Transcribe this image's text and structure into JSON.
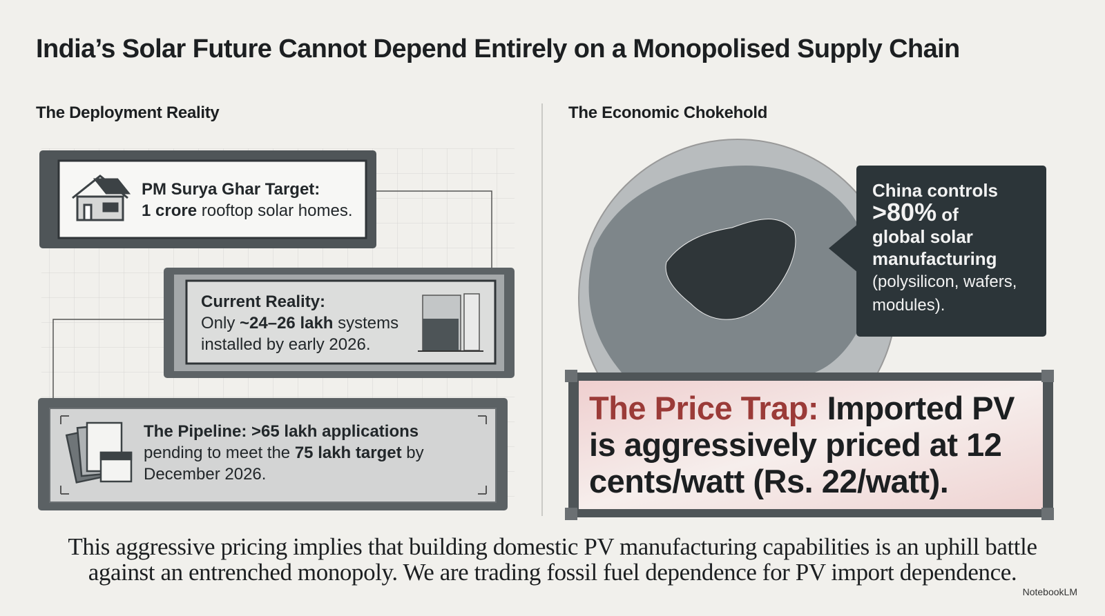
{
  "title": "India’s Solar Future Cannot Depend Entirely on a Monopolised Supply Chain",
  "left": {
    "heading": "The Deployment Reality",
    "cards": [
      {
        "lines": [
          [
            {
              "text": "PM Surya Ghar Target:",
              "style": "bold"
            }
          ],
          [
            {
              "text": "1 crore",
              "style": "bold"
            },
            {
              "text": " rooftop solar homes.",
              "style": "normal"
            }
          ]
        ]
      },
      {
        "lines": [
          [
            {
              "text": "Current Reality:",
              "style": "bold"
            }
          ],
          [
            {
              "text": "Only ",
              "style": "normal"
            },
            {
              "text": "~24–26 lakh",
              "style": "bold"
            },
            {
              "text": " systems",
              "style": "normal"
            }
          ],
          [
            {
              "text": "installed by early 2026.",
              "style": "normal"
            }
          ]
        ]
      },
      {
        "lines": [
          [
            {
              "text": "The Pipeline: >65 lakh applications",
              "style": "bold"
            }
          ],
          [
            {
              "text": "pending to meet the ",
              "style": "normal"
            },
            {
              "text": "75 lakh target",
              "style": "bold"
            },
            {
              "text": " by",
              "style": "normal"
            }
          ],
          [
            {
              "text": "December 2026.",
              "style": "normal"
            }
          ]
        ]
      }
    ]
  },
  "right": {
    "heading": "The Economic Chokehold",
    "callout": {
      "lines": [
        [
          {
            "text": "China controls",
            "style": "bold"
          }
        ],
        [
          {
            "text": ">80%",
            "style": "large"
          },
          {
            "text": " of",
            "style": "bold"
          }
        ],
        [
          {
            "text": "global solar",
            "style": "bold"
          }
        ],
        [
          {
            "text": "manufacturing",
            "style": "bold"
          }
        ],
        [
          {
            "text": "(polysilicon, wafers,",
            "style": "normal"
          }
        ],
        [
          {
            "text": "modules).",
            "style": "normal"
          }
        ]
      ]
    },
    "price_box": {
      "lines": [
        [
          {
            "text": "The Price Trap:",
            "style": "accent"
          },
          {
            "text": " Imported PV",
            "style": "bold"
          }
        ],
        [
          {
            "text": "is aggressively priced at 12",
            "style": "bold"
          }
        ],
        [
          {
            "text": "cents/watt (Rs. 22/watt).",
            "style": "bold"
          }
        ]
      ]
    }
  },
  "footer": {
    "lines": [
      [
        {
          "text": "This aggressive pricing implies that building domestic PV manufacturing capabilities is an uphill battle",
          "style": "normal"
        }
      ],
      [
        {
          "text": "against an entrenched monopoly. We are trading fossil fuel dependence for PV import dependence.",
          "style": "normal"
        }
      ]
    ]
  },
  "brand": "NotebookLM"
}
